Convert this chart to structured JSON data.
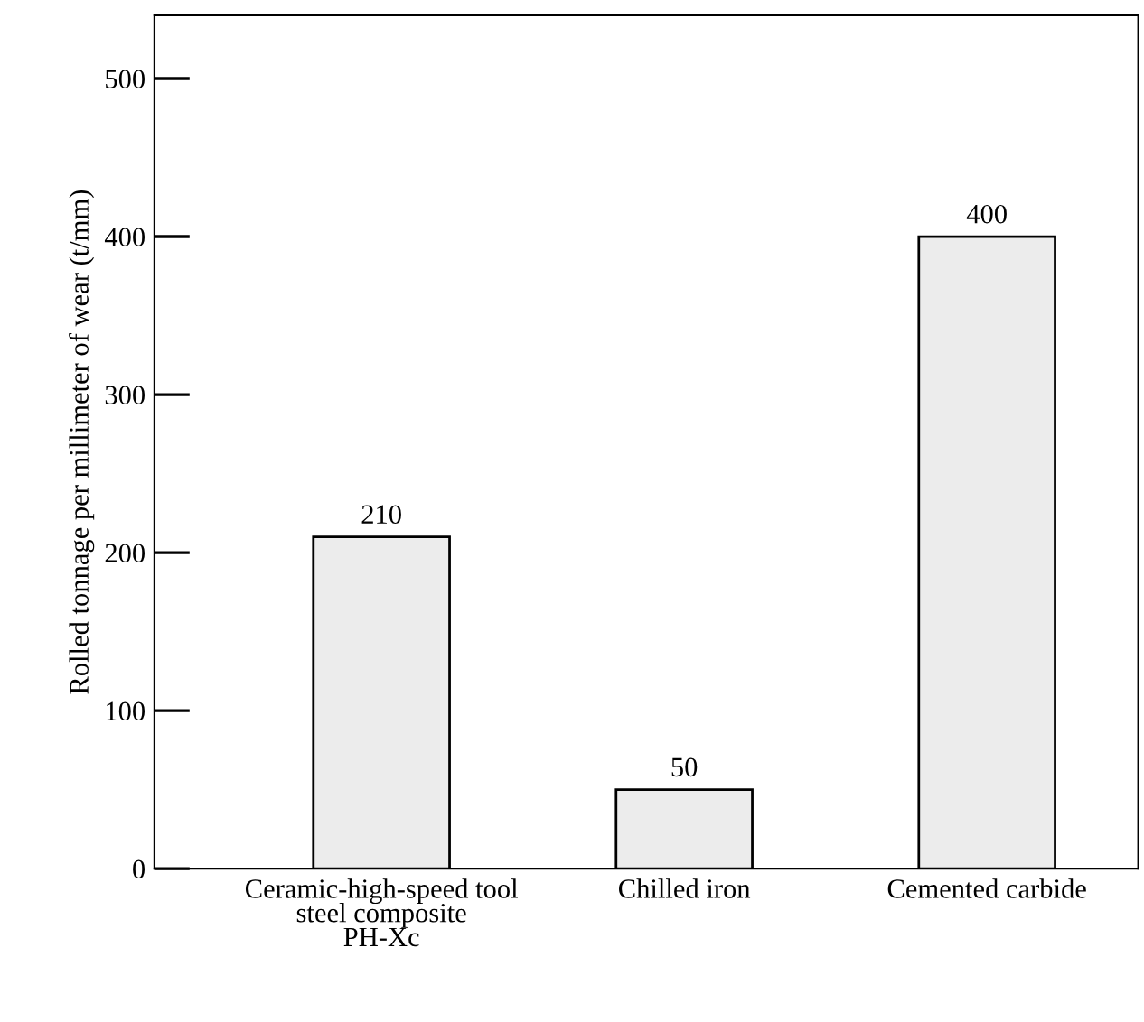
{
  "chart_data": {
    "type": "bar",
    "ylabel": "Rolled tonnage per millimeter of wear (t/mm)",
    "categories": [
      "Ceramic-high-speed tool\nsteel composite\nPH-Xc",
      "Chilled iron",
      "Cemented carbide"
    ],
    "values": [
      210,
      50,
      400
    ],
    "color": "#ececec",
    "ylim": [
      0,
      540
    ],
    "yticks": [
      0,
      100,
      200,
      300,
      400,
      500
    ],
    "data_labels": true,
    "grid": false
  }
}
